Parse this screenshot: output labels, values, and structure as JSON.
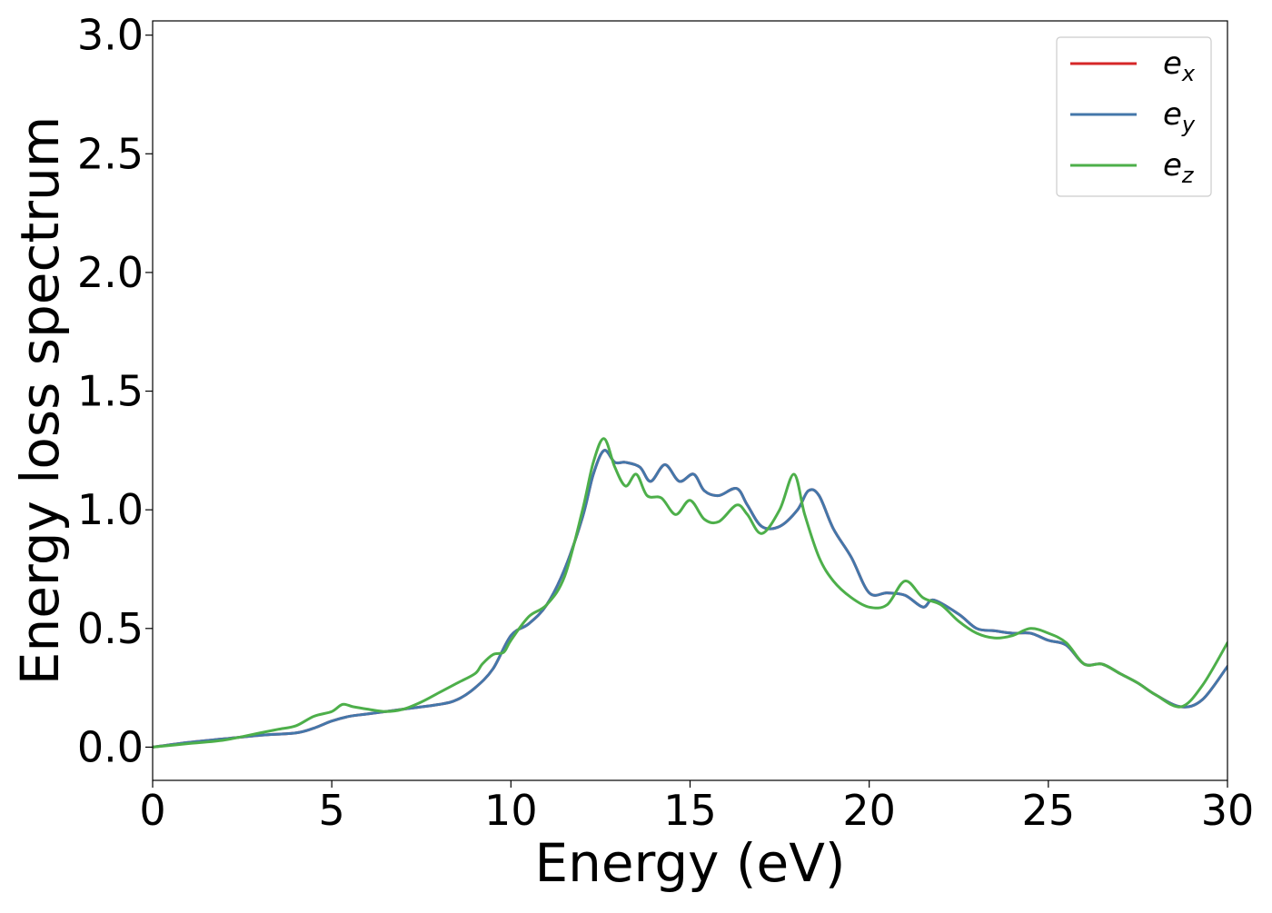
{
  "chart_data": {
    "type": "line",
    "xlabel": "Energy (eV)",
    "ylabel": "Energy loss spectrum",
    "xlim": [
      0,
      30
    ],
    "ylim": [
      -0.14,
      3.06
    ],
    "xticks": [
      0,
      5,
      10,
      15,
      20,
      25,
      30
    ],
    "xtick_labels": [
      "0",
      "5",
      "10",
      "15",
      "20",
      "25",
      "30"
    ],
    "yticks": [
      0.0,
      0.5,
      1.0,
      1.5,
      2.0,
      2.5,
      3.0
    ],
    "ytick_labels": [
      "0.0",
      "0.5",
      "1.0",
      "1.5",
      "2.0",
      "2.5",
      "3.0"
    ],
    "grid": false,
    "legend_position": "top-right",
    "series": [
      {
        "name": "e_x",
        "legend_base": "e",
        "legend_sub": "x",
        "color": "#d62728",
        "x": [
          0,
          1,
          2,
          3,
          4,
          4.5,
          5,
          5.5,
          6,
          7,
          8,
          8.5,
          9,
          9.5,
          10,
          10.5,
          11,
          11.5,
          12,
          12.3,
          12.6,
          12.9,
          13.2,
          13.6,
          13.9,
          14.3,
          14.7,
          15.1,
          15.4,
          15.8,
          16.3,
          16.6,
          17,
          17.5,
          18,
          18.3,
          18.6,
          19,
          19.5,
          20,
          20.5,
          21,
          21.5,
          21.8,
          22.5,
          23,
          23.5,
          24,
          24.5,
          25,
          25.5,
          26,
          26.5,
          27,
          27.5,
          28,
          28.7,
          29.3,
          30
        ],
        "y": [
          0.0,
          0.02,
          0.035,
          0.05,
          0.06,
          0.08,
          0.11,
          0.13,
          0.14,
          0.16,
          0.18,
          0.2,
          0.25,
          0.33,
          0.47,
          0.52,
          0.6,
          0.75,
          0.97,
          1.15,
          1.25,
          1.2,
          1.2,
          1.18,
          1.12,
          1.19,
          1.12,
          1.15,
          1.08,
          1.06,
          1.09,
          1.02,
          0.93,
          0.93,
          1.0,
          1.08,
          1.06,
          0.92,
          0.8,
          0.65,
          0.65,
          0.64,
          0.59,
          0.62,
          0.56,
          0.5,
          0.49,
          0.48,
          0.48,
          0.45,
          0.43,
          0.35,
          0.35,
          0.31,
          0.27,
          0.22,
          0.17,
          0.2,
          0.34
        ]
      },
      {
        "name": "e_y",
        "legend_base": "e",
        "legend_sub": "y",
        "color": "#4477aa",
        "x": [
          0,
          1,
          2,
          3,
          4,
          4.5,
          5,
          5.5,
          6,
          7,
          8,
          8.5,
          9,
          9.5,
          10,
          10.5,
          11,
          11.5,
          12,
          12.3,
          12.6,
          12.9,
          13.2,
          13.6,
          13.9,
          14.3,
          14.7,
          15.1,
          15.4,
          15.8,
          16.3,
          16.6,
          17,
          17.5,
          18,
          18.3,
          18.6,
          19,
          19.5,
          20,
          20.5,
          21,
          21.5,
          21.8,
          22.5,
          23,
          23.5,
          24,
          24.5,
          25,
          25.5,
          26,
          26.5,
          27,
          27.5,
          28,
          28.7,
          29.3,
          30
        ],
        "y": [
          0.0,
          0.02,
          0.035,
          0.05,
          0.06,
          0.08,
          0.11,
          0.13,
          0.14,
          0.16,
          0.18,
          0.2,
          0.25,
          0.33,
          0.47,
          0.52,
          0.6,
          0.75,
          0.97,
          1.15,
          1.25,
          1.2,
          1.2,
          1.18,
          1.12,
          1.19,
          1.12,
          1.15,
          1.08,
          1.06,
          1.09,
          1.02,
          0.93,
          0.93,
          1.0,
          1.08,
          1.06,
          0.92,
          0.8,
          0.65,
          0.65,
          0.64,
          0.59,
          0.62,
          0.56,
          0.5,
          0.49,
          0.48,
          0.48,
          0.45,
          0.43,
          0.35,
          0.35,
          0.31,
          0.27,
          0.22,
          0.17,
          0.2,
          0.34
        ]
      },
      {
        "name": "e_z",
        "legend_base": "e",
        "legend_sub": "z",
        "color": "#4daf4a",
        "x": [
          0,
          1,
          2,
          3,
          3.5,
          4,
          4.5,
          5,
          5.3,
          5.6,
          6,
          6.5,
          7,
          7.5,
          8,
          8.5,
          9,
          9.2,
          9.5,
          9.8,
          10,
          10.5,
          11,
          11.5,
          12,
          12.3,
          12.6,
          12.9,
          13.2,
          13.5,
          13.8,
          14.2,
          14.6,
          15.0,
          15.4,
          15.8,
          16.3,
          16.6,
          17.0,
          17.5,
          17.9,
          18.2,
          18.6,
          19.0,
          19.5,
          20.0,
          20.5,
          21.0,
          21.5,
          22.0,
          22.5,
          23.0,
          23.5,
          24.0,
          24.5,
          25.0,
          25.5,
          26.0,
          26.5,
          27.0,
          27.5,
          28.0,
          28.7,
          29.3,
          30.0
        ],
        "y": [
          0.0,
          0.015,
          0.03,
          0.06,
          0.075,
          0.09,
          0.13,
          0.15,
          0.18,
          0.17,
          0.16,
          0.15,
          0.16,
          0.19,
          0.23,
          0.27,
          0.31,
          0.35,
          0.39,
          0.4,
          0.45,
          0.55,
          0.6,
          0.72,
          1.0,
          1.2,
          1.3,
          1.18,
          1.1,
          1.15,
          1.06,
          1.05,
          0.98,
          1.04,
          0.96,
          0.95,
          1.02,
          0.98,
          0.9,
          1.0,
          1.15,
          0.98,
          0.8,
          0.7,
          0.63,
          0.59,
          0.6,
          0.7,
          0.63,
          0.6,
          0.53,
          0.48,
          0.46,
          0.47,
          0.5,
          0.48,
          0.44,
          0.35,
          0.35,
          0.31,
          0.27,
          0.22,
          0.17,
          0.26,
          0.44
        ]
      }
    ]
  }
}
